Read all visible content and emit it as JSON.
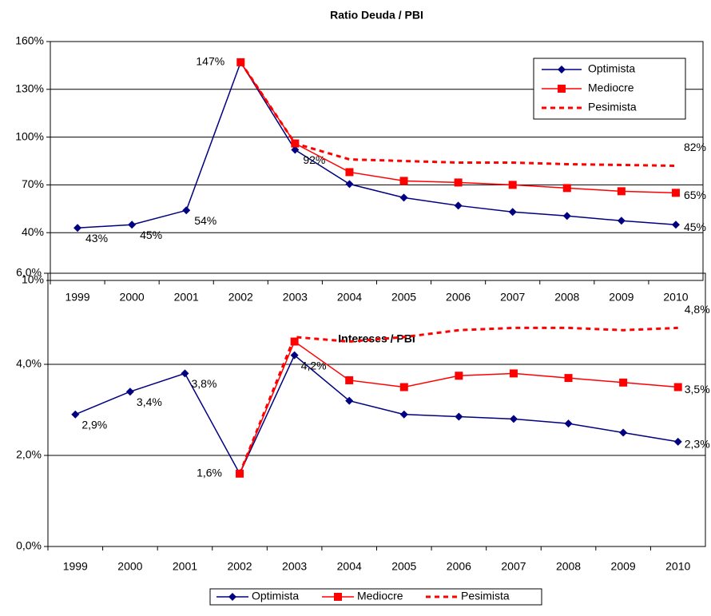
{
  "chart_data": [
    {
      "type": "line",
      "title": "Ratio Deuda / PBI",
      "legend": "upper right",
      "grid": true,
      "categories": [
        "1999",
        "2000",
        "2001",
        "2002",
        "2003",
        "2004",
        "2005",
        "2006",
        "2007",
        "2008",
        "2009",
        "2010"
      ],
      "ylim": [
        10,
        160
      ],
      "yticks": [
        {
          "value": 10,
          "label": "10%"
        },
        {
          "value": 40,
          "label": "40%"
        },
        {
          "value": 70,
          "label": "70%"
        },
        {
          "value": 100,
          "label": "100%"
        },
        {
          "value": 130,
          "label": "130%"
        },
        {
          "value": 160,
          "label": "160%"
        }
      ],
      "series": [
        {
          "name": "Optimista",
          "color": "#000080",
          "marker": "diamond",
          "line": "solid",
          "values": [
            43,
            45,
            54,
            147,
            92,
            70.5,
            62,
            57,
            53,
            50.5,
            47.5,
            45
          ],
          "value_labels": [
            "43%",
            "45%",
            "54%",
            "147%",
            "92%",
            null,
            null,
            null,
            null,
            null,
            null,
            "45%"
          ]
        },
        {
          "name": "Mediocre",
          "color": "#ff0000",
          "marker": "square",
          "line": "solid",
          "values": [
            null,
            null,
            null,
            147,
            96,
            78,
            72.5,
            71.5,
            70,
            68,
            66,
            65
          ],
          "value_labels": [
            null,
            null,
            null,
            null,
            null,
            null,
            null,
            null,
            null,
            null,
            null,
            "65%"
          ]
        },
        {
          "name": "Pesimista",
          "color": "#ff0000",
          "marker": "none",
          "line": "dashed",
          "values": [
            null,
            null,
            null,
            147,
            96,
            86,
            85,
            84,
            84,
            83,
            82.5,
            82
          ],
          "value_labels": [
            null,
            null,
            null,
            null,
            null,
            null,
            null,
            null,
            null,
            null,
            null,
            "82%"
          ]
        }
      ]
    },
    {
      "type": "line",
      "title": "Intereses / PBI",
      "legend": "bottom",
      "grid": true,
      "categories": [
        "1999",
        "2000",
        "2001",
        "2002",
        "2003",
        "2004",
        "2005",
        "2006",
        "2007",
        "2008",
        "2009",
        "2010"
      ],
      "ylim": [
        0,
        6
      ],
      "yticks": [
        {
          "value": 0,
          "label": "0,0%"
        },
        {
          "value": 2,
          "label": "2,0%"
        },
        {
          "value": 4,
          "label": "4,0%"
        },
        {
          "value": 6,
          "label": "6,0%"
        }
      ],
      "series": [
        {
          "name": "Optimista",
          "color": "#000080",
          "marker": "diamond",
          "line": "solid",
          "values": [
            2.9,
            3.4,
            3.8,
            1.6,
            4.2,
            3.2,
            2.9,
            2.85,
            2.8,
            2.7,
            2.5,
            2.3
          ],
          "value_labels": [
            "2,9%",
            "3,4%",
            "3,8%",
            "1,6%",
            "4,2%",
            null,
            null,
            null,
            null,
            null,
            null,
            "2,3%"
          ]
        },
        {
          "name": "Mediocre",
          "color": "#ff0000",
          "marker": "square",
          "line": "solid",
          "values": [
            null,
            null,
            null,
            1.6,
            4.5,
            3.65,
            3.5,
            3.75,
            3.8,
            3.7,
            3.6,
            3.5
          ],
          "value_labels": [
            null,
            null,
            null,
            null,
            null,
            null,
            null,
            null,
            null,
            null,
            null,
            "3,5%"
          ]
        },
        {
          "name": "Pesimista",
          "color": "#ff0000",
          "marker": "none",
          "line": "dashed",
          "values": [
            null,
            null,
            null,
            1.6,
            4.6,
            4.5,
            4.6,
            4.75,
            4.8,
            4.8,
            4.75,
            4.8
          ],
          "value_labels": [
            null,
            null,
            null,
            null,
            null,
            null,
            null,
            null,
            null,
            null,
            null,
            "4,8%"
          ]
        }
      ]
    }
  ]
}
